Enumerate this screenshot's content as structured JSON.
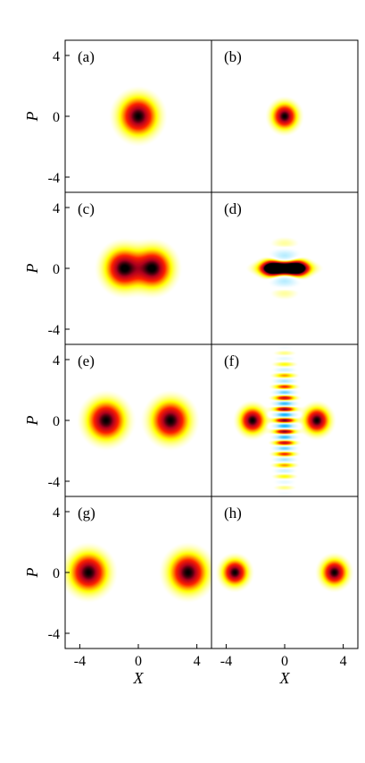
{
  "chart_data": {
    "type": "heatmap",
    "xlabel": "X",
    "ylabel": "P",
    "xlim": [
      -5,
      5
    ],
    "ylim": [
      -5,
      5
    ],
    "xticks": [
      "-4",
      "0",
      "4"
    ],
    "yticks": [
      "4",
      "0",
      "-4"
    ],
    "colors": {
      "positive_peak": "#000000",
      "positive_high": "#b0001e",
      "positive_mid": "#ff2000",
      "positive_low": "#ffff00",
      "negative_low": "#bfefff",
      "negative_high": "#00b0ff",
      "background": "#ffffff"
    },
    "panels": [
      {
        "label": "(a)",
        "blobs": [
          {
            "x": 0,
            "p": 0,
            "sx": 0.75,
            "sp": 0.75
          }
        ],
        "fringes": null
      },
      {
        "label": "(b)",
        "blobs": [
          {
            "x": 0,
            "p": 0,
            "sx": 0.5,
            "sp": 0.5
          }
        ],
        "fringes": null
      },
      {
        "label": "(c)",
        "blobs": [
          {
            "x": -1.0,
            "p": 0,
            "sx": 0.75,
            "sp": 0.75
          },
          {
            "x": 1.0,
            "p": 0,
            "sx": 0.75,
            "sp": 0.75
          }
        ],
        "fringes": null
      },
      {
        "label": "(d)",
        "blobs": [
          {
            "x": -0.9,
            "p": 0,
            "sx": 0.45,
            "sp": 0.35
          },
          {
            "x": 0.9,
            "p": 0,
            "sx": 0.45,
            "sp": 0.35
          },
          {
            "x": 0,
            "p": 0,
            "sx": 1.0,
            "sp": 0.25
          }
        ],
        "fringes": {
          "x": 0,
          "p": 0,
          "sx": 0.6,
          "sp": 0.9,
          "freq": 3.5,
          "amp": 0.7
        }
      },
      {
        "label": "(e)",
        "blobs": [
          {
            "x": -2.2,
            "p": 0,
            "sx": 0.75,
            "sp": 0.75
          },
          {
            "x": 2.2,
            "p": 0,
            "sx": 0.75,
            "sp": 0.75
          }
        ],
        "fringes": null
      },
      {
        "label": "(f)",
        "blobs": [
          {
            "x": -2.2,
            "p": 0,
            "sx": 0.5,
            "sp": 0.5
          },
          {
            "x": 2.2,
            "p": 0,
            "sx": 0.5,
            "sp": 0.5
          }
        ],
        "fringes": {
          "x": 0,
          "p": 0,
          "sx": 0.45,
          "sp": 2.3,
          "freq": 8.5,
          "amp": 0.9
        }
      },
      {
        "label": "(g)",
        "blobs": [
          {
            "x": -3.4,
            "p": 0,
            "sx": 0.75,
            "sp": 0.75
          },
          {
            "x": 3.4,
            "p": 0,
            "sx": 0.75,
            "sp": 0.75
          }
        ],
        "fringes": null
      },
      {
        "label": "(h)",
        "blobs": [
          {
            "x": -3.4,
            "p": 0,
            "sx": 0.5,
            "sp": 0.5
          },
          {
            "x": 3.4,
            "p": 0,
            "sx": 0.5,
            "sp": 0.5
          }
        ],
        "fringes": null
      }
    ]
  }
}
